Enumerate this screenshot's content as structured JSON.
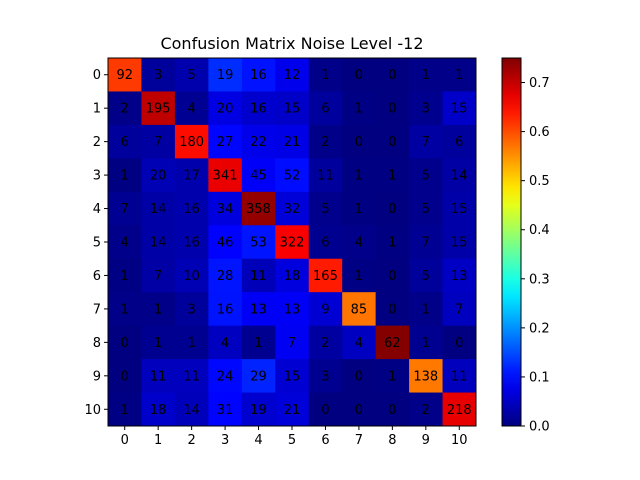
{
  "chart_data": {
    "type": "heatmap",
    "title": "Confusion Matrix Noise Level -12",
    "x_ticks": [
      "0",
      "1",
      "2",
      "3",
      "4",
      "5",
      "6",
      "7",
      "8",
      "9",
      "10"
    ],
    "y_ticks": [
      "0",
      "1",
      "2",
      "3",
      "4",
      "5",
      "6",
      "7",
      "8",
      "9",
      "10"
    ],
    "matrix": [
      [
        92,
        3,
        5,
        19,
        16,
        12,
        1,
        0,
        0,
        1,
        1
      ],
      [
        2,
        195,
        4,
        20,
        16,
        15,
        6,
        1,
        0,
        3,
        15
      ],
      [
        6,
        7,
        180,
        27,
        22,
        21,
        2,
        0,
        0,
        7,
        6
      ],
      [
        1,
        20,
        17,
        341,
        45,
        52,
        11,
        1,
        1,
        5,
        14
      ],
      [
        7,
        14,
        16,
        34,
        358,
        32,
        5,
        1,
        0,
        5,
        15
      ],
      [
        4,
        14,
        16,
        46,
        53,
        322,
        6,
        4,
        1,
        7,
        15
      ],
      [
        1,
        7,
        10,
        28,
        11,
        18,
        165,
        1,
        0,
        5,
        13
      ],
      [
        1,
        1,
        3,
        16,
        13,
        13,
        9,
        85,
        0,
        1,
        7
      ],
      [
        0,
        1,
        1,
        4,
        1,
        7,
        2,
        4,
        62,
        1,
        0
      ],
      [
        0,
        11,
        11,
        24,
        29,
        15,
        3,
        0,
        1,
        138,
        11
      ],
      [
        1,
        18,
        14,
        31,
        19,
        21,
        0,
        0,
        0,
        2,
        218
      ]
    ],
    "colorbar": {
      "colormap": "jet",
      "range": [
        0.0,
        0.75
      ],
      "ticks": [
        "0.0",
        "0.1",
        "0.2",
        "0.3",
        "0.4",
        "0.5",
        "0.6",
        "0.7"
      ]
    }
  }
}
